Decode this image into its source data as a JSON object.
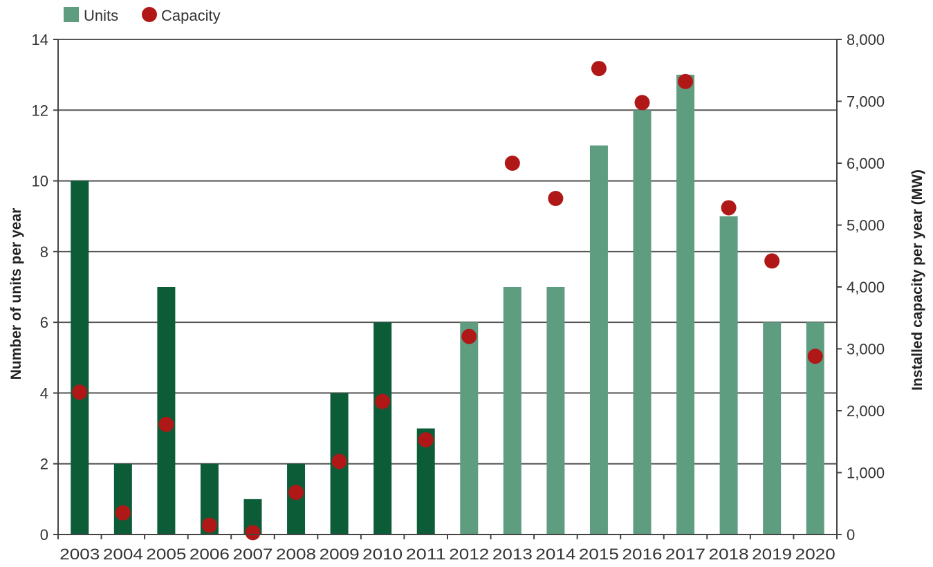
{
  "chart_data": {
    "type": "bar",
    "title": "",
    "categories": [
      "2003",
      "2004",
      "2005",
      "2006",
      "2007",
      "2008",
      "2009",
      "2010",
      "2011",
      "2012",
      "2013",
      "2014",
      "2015",
      "2016",
      "2017",
      "2018",
      "2019",
      "2020"
    ],
    "series": [
      {
        "name": "Units",
        "axis": "left",
        "type": "bar",
        "values": [
          10,
          2,
          7,
          2,
          1,
          2,
          4,
          6,
          3,
          6,
          7,
          7,
          11,
          12,
          13,
          9,
          6,
          6
        ]
      },
      {
        "name": "Capacity",
        "axis": "right",
        "type": "scatter",
        "values": [
          2300,
          350,
          1780,
          150,
          30,
          680,
          1180,
          2150,
          1530,
          3200,
          6000,
          5430,
          7530,
          6980,
          7320,
          5280,
          4420,
          2880
        ]
      }
    ],
    "ylabel": "Number of units per year",
    "y2label": "Installed capacity per year (MW)",
    "ylim": [
      0,
      14
    ],
    "y2lim": [
      0,
      8000
    ],
    "yticks": [
      0,
      2,
      4,
      6,
      8,
      10,
      12,
      14
    ],
    "y2ticks": [
      "0",
      "1,000",
      "2,000",
      "3,000",
      "4,000",
      "5,000",
      "6,000",
      "7,000",
      "8,000"
    ],
    "grid": true,
    "legend": "top-left",
    "colors": {
      "bar_historical": "#0d5c38",
      "bar_recent": "#5f9d80",
      "bar_legend": "#5f9d80",
      "marker": "#b01818"
    }
  }
}
